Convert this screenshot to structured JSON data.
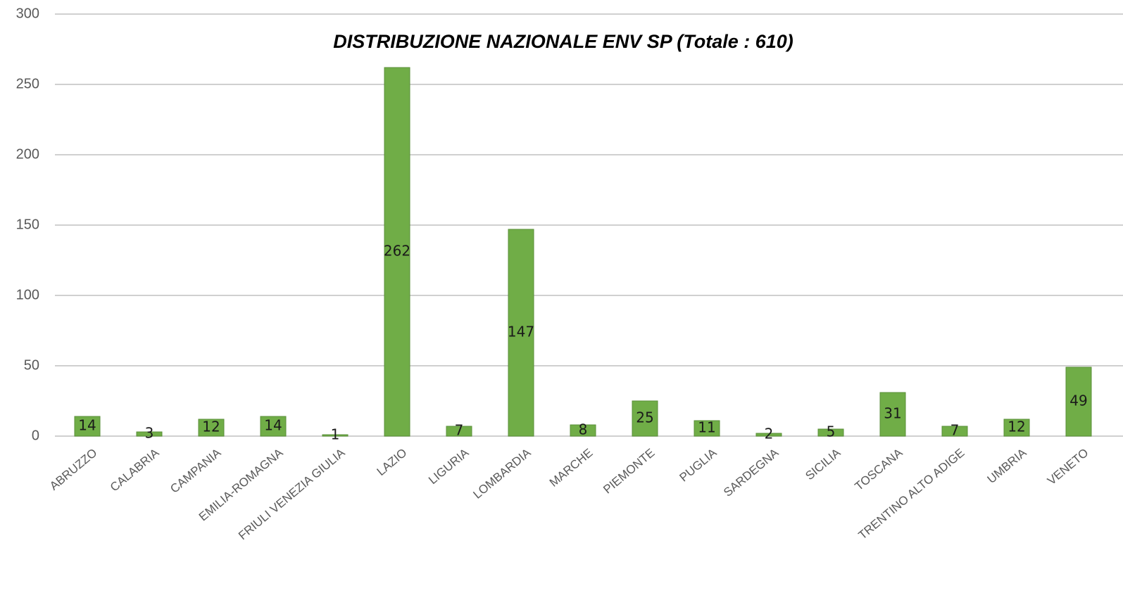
{
  "chart_data": {
    "type": "bar",
    "title": "DISTRIBUZIONE NAZIONALE ENV SP (Totale : 610)",
    "categories": [
      "ABRUZZO",
      "CALABRIA",
      "CAMPANIA",
      "EMILIA-ROMAGNA",
      "FRIULI VENEZIA GIULIA",
      "LAZIO",
      "LIGURIA",
      "LOMBARDIA",
      "MARCHE",
      "PIEMONTE",
      "PUGLIA",
      "SARDEGNA",
      "SICILIA",
      "TOSCANA",
      "TRENTINO ALTO ADIGE",
      "UMBRIA",
      "VENETO"
    ],
    "values": [
      14,
      3,
      12,
      14,
      1,
      262,
      7,
      147,
      8,
      25,
      11,
      2,
      5,
      31,
      7,
      12,
      49
    ],
    "color": "#70ad47",
    "ylim": [
      0,
      300
    ],
    "yticks": [
      0,
      50,
      100,
      150,
      200,
      250,
      300
    ],
    "grid": true
  }
}
